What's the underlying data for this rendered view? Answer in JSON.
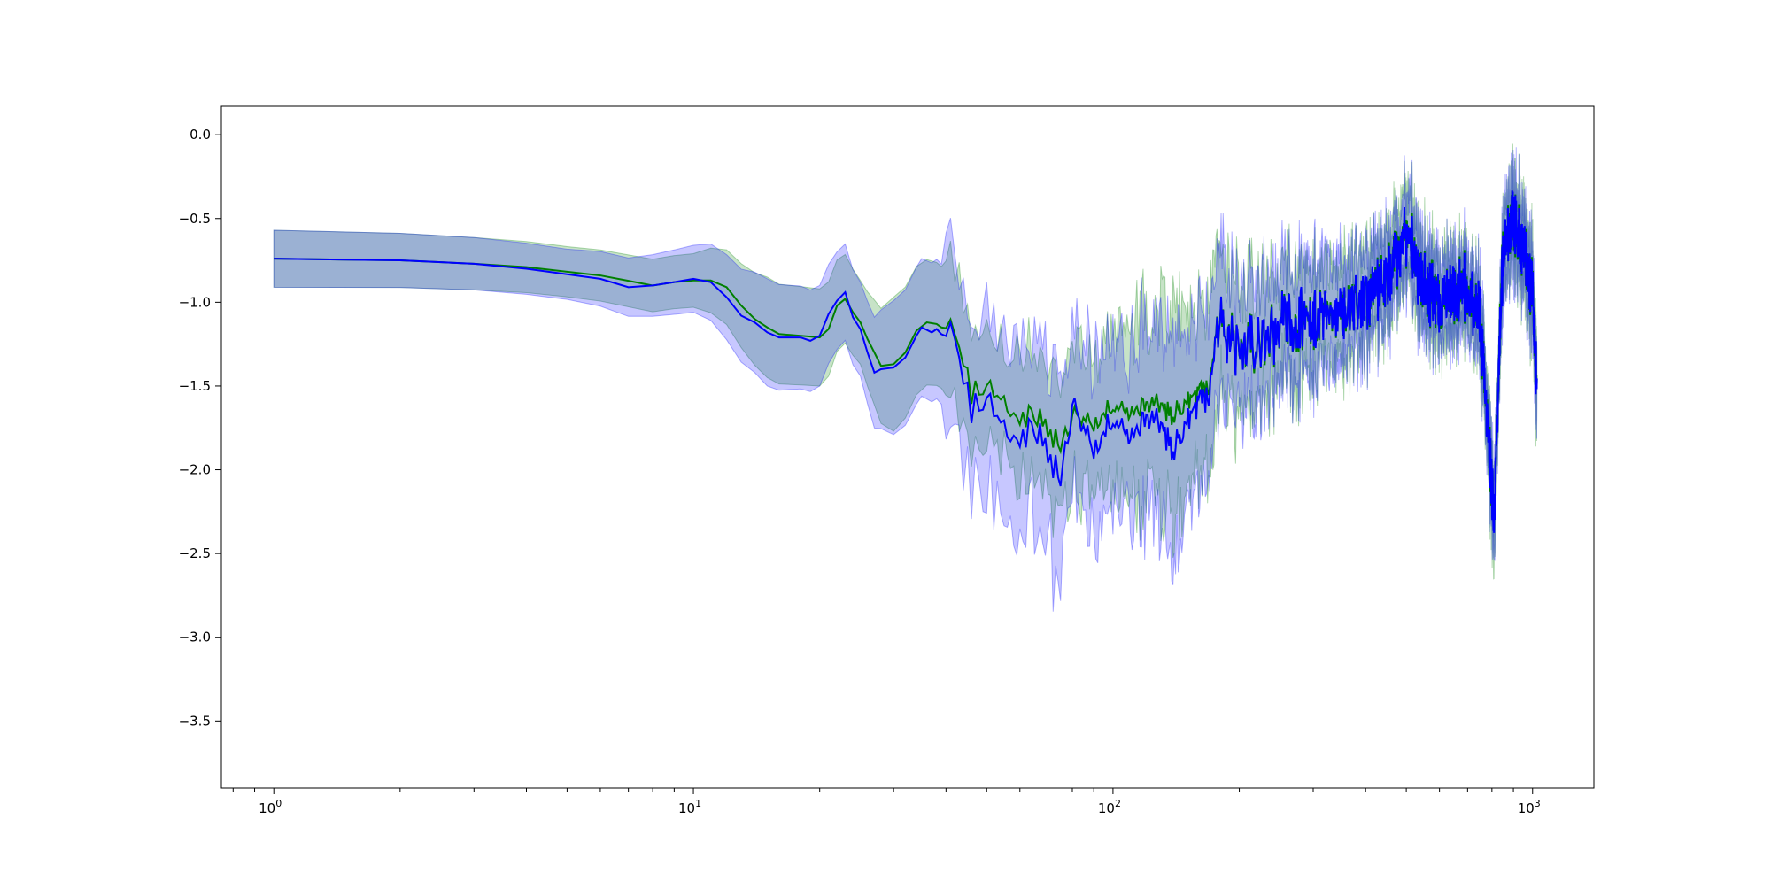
{
  "chart_data": {
    "type": "line",
    "title": "",
    "xlabel": "",
    "ylabel": "",
    "xscale": "log",
    "xlim": [
      0.75,
      1400
    ],
    "ylim": [
      -3.9,
      0.17
    ],
    "xticks": [
      {
        "value": 1,
        "base": "10",
        "exp": "0"
      },
      {
        "value": 10,
        "base": "10",
        "exp": "1"
      },
      {
        "value": 100,
        "base": "10",
        "exp": "2"
      },
      {
        "value": 1000,
        "base": "10",
        "exp": "3"
      }
    ],
    "yticks": [
      {
        "value": 0.0,
        "label": "0.0"
      },
      {
        "value": -0.5,
        "label": "−0.5"
      },
      {
        "value": -1.0,
        "label": "−1.0"
      },
      {
        "value": -1.5,
        "label": "−1.5"
      },
      {
        "value": -2.0,
        "label": "−2.0"
      },
      {
        "value": -2.5,
        "label": "−2.5"
      },
      {
        "value": -3.0,
        "label": "−3.0"
      },
      {
        "value": -3.5,
        "label": "−3.5"
      }
    ],
    "grid": false,
    "legend": "none",
    "x_range": [
      1,
      1024
    ],
    "anchors": {
      "green": [
        [
          1,
          -0.74
        ],
        [
          2,
          -0.75
        ],
        [
          3,
          -0.77
        ],
        [
          4,
          -0.79
        ],
        [
          6,
          -0.84
        ],
        [
          8,
          -0.9
        ],
        [
          9,
          -0.88
        ],
        [
          10,
          -0.87
        ],
        [
          11,
          -0.87
        ],
        [
          12,
          -0.91
        ],
        [
          13,
          -1.02
        ],
        [
          14,
          -1.1
        ],
        [
          15,
          -1.15
        ],
        [
          16,
          -1.19
        ],
        [
          18,
          -1.2
        ],
        [
          20,
          -1.21
        ],
        [
          21,
          -1.16
        ],
        [
          22,
          -1.02
        ],
        [
          23,
          -0.98
        ],
        [
          24,
          -1.06
        ],
        [
          25,
          -1.12
        ],
        [
          26,
          -1.22
        ],
        [
          27,
          -1.3
        ],
        [
          28,
          -1.38
        ],
        [
          30,
          -1.37
        ],
        [
          32,
          -1.3
        ],
        [
          34,
          -1.17
        ],
        [
          36,
          -1.12
        ],
        [
          38,
          -1.13
        ],
        [
          40,
          -1.17
        ],
        [
          42,
          -1.16
        ],
        [
          44,
          -1.35
        ],
        [
          46,
          -1.55
        ],
        [
          50,
          -1.48
        ],
        [
          55,
          -1.62
        ],
        [
          60,
          -1.72
        ],
        [
          65,
          -1.67
        ],
        [
          70,
          -1.76
        ],
        [
          75,
          -1.83
        ],
        [
          80,
          -1.68
        ],
        [
          90,
          -1.72
        ],
        [
          100,
          -1.62
        ],
        [
          110,
          -1.64
        ],
        [
          120,
          -1.58
        ],
        [
          130,
          -1.63
        ],
        [
          140,
          -1.67
        ],
        [
          150,
          -1.6
        ],
        [
          160,
          -1.54
        ],
        [
          170,
          -1.5
        ],
        [
          180,
          -1.15
        ],
        [
          200,
          -1.25
        ],
        [
          250,
          -1.1
        ],
        [
          300,
          -1.05
        ],
        [
          350,
          -1.0
        ],
        [
          400,
          -0.95
        ],
        [
          450,
          -0.8
        ],
        [
          500,
          -0.62
        ],
        [
          550,
          -0.85
        ],
        [
          600,
          -0.95
        ],
        [
          650,
          -0.9
        ],
        [
          700,
          -0.85
        ],
        [
          750,
          -1.0
        ],
        [
          800,
          -1.5
        ],
        [
          850,
          -0.8
        ],
        [
          900,
          -0.6
        ],
        [
          950,
          -0.75
        ],
        [
          1000,
          -0.9
        ],
        [
          1024,
          -1.4
        ]
      ],
      "blue": [
        [
          1,
          -0.74
        ],
        [
          2,
          -0.75
        ],
        [
          3,
          -0.77
        ],
        [
          4,
          -0.8
        ],
        [
          6,
          -0.86
        ],
        [
          7,
          -0.91
        ],
        [
          8,
          -0.9
        ],
        [
          9,
          -0.88
        ],
        [
          10,
          -0.86
        ],
        [
          11,
          -0.88
        ],
        [
          12,
          -0.97
        ],
        [
          13,
          -1.08
        ],
        [
          14,
          -1.12
        ],
        [
          15,
          -1.18
        ],
        [
          16,
          -1.21
        ],
        [
          18,
          -1.21
        ],
        [
          19,
          -1.23
        ],
        [
          20,
          -1.2
        ],
        [
          21,
          -1.07
        ],
        [
          22,
          -0.99
        ],
        [
          23,
          -0.94
        ],
        [
          24,
          -1.09
        ],
        [
          25,
          -1.16
        ],
        [
          26,
          -1.3
        ],
        [
          27,
          -1.42
        ],
        [
          28,
          -1.4
        ],
        [
          30,
          -1.39
        ],
        [
          32,
          -1.33
        ],
        [
          34,
          -1.2
        ],
        [
          35,
          -1.15
        ],
        [
          37,
          -1.18
        ],
        [
          38,
          -1.16
        ],
        [
          40,
          -1.22
        ],
        [
          42,
          -1.18
        ],
        [
          44,
          -1.45
        ],
        [
          46,
          -1.65
        ],
        [
          50,
          -1.55
        ],
        [
          55,
          -1.78
        ],
        [
          60,
          -1.85
        ],
        [
          65,
          -1.75
        ],
        [
          70,
          -1.9
        ],
        [
          75,
          -2.02
        ],
        [
          80,
          -1.62
        ],
        [
          90,
          -1.87
        ],
        [
          100,
          -1.7
        ],
        [
          110,
          -1.78
        ],
        [
          120,
          -1.65
        ],
        [
          130,
          -1.75
        ],
        [
          140,
          -1.88
        ],
        [
          150,
          -1.72
        ],
        [
          160,
          -1.6
        ],
        [
          170,
          -1.55
        ],
        [
          180,
          -1.15
        ],
        [
          200,
          -1.3
        ],
        [
          250,
          -1.15
        ],
        [
          300,
          -1.1
        ],
        [
          350,
          -1.05
        ],
        [
          400,
          -1.0
        ],
        [
          450,
          -0.85
        ],
        [
          500,
          -0.6
        ],
        [
          550,
          -0.9
        ],
        [
          600,
          -1.0
        ],
        [
          650,
          -0.95
        ],
        [
          700,
          -0.9
        ],
        [
          750,
          -1.1
        ],
        [
          810,
          -2.3
        ],
        [
          850,
          -0.7
        ],
        [
          900,
          -0.5
        ],
        [
          950,
          -0.7
        ],
        [
          1000,
          -0.95
        ],
        [
          1024,
          -1.55
        ]
      ],
      "green_halfwidth": [
        [
          1,
          0.17
        ],
        [
          5,
          0.15
        ],
        [
          10,
          0.16
        ],
        [
          15,
          0.3
        ],
        [
          20,
          0.29
        ],
        [
          25,
          0.25
        ],
        [
          30,
          0.4
        ],
        [
          40,
          0.36
        ],
        [
          50,
          0.3
        ],
        [
          70,
          0.42
        ],
        [
          100,
          0.42
        ],
        [
          130,
          0.6
        ],
        [
          170,
          0.45
        ],
        [
          200,
          0.35
        ],
        [
          400,
          0.25
        ],
        [
          700,
          0.2
        ],
        [
          1024,
          0.22
        ]
      ],
      "blue_halfwidth": [
        [
          1,
          0.17
        ],
        [
          5,
          0.15
        ],
        [
          10,
          0.2
        ],
        [
          15,
          0.32
        ],
        [
          20,
          0.3
        ],
        [
          25,
          0.28
        ],
        [
          30,
          0.4
        ],
        [
          40,
          0.42
        ],
        [
          50,
          0.5
        ],
        [
          70,
          0.55
        ],
        [
          100,
          0.45
        ],
        [
          130,
          0.6
        ],
        [
          170,
          0.45
        ],
        [
          200,
          0.35
        ],
        [
          400,
          0.25
        ],
        [
          700,
          0.2
        ],
        [
          1024,
          0.22
        ]
      ]
    },
    "series": [
      {
        "color": "#008000",
        "band_color": "#008000",
        "band_opacity": 0.22
      },
      {
        "color": "#0000ff",
        "band_color": "#0000ff",
        "band_opacity": 0.22
      }
    ]
  }
}
